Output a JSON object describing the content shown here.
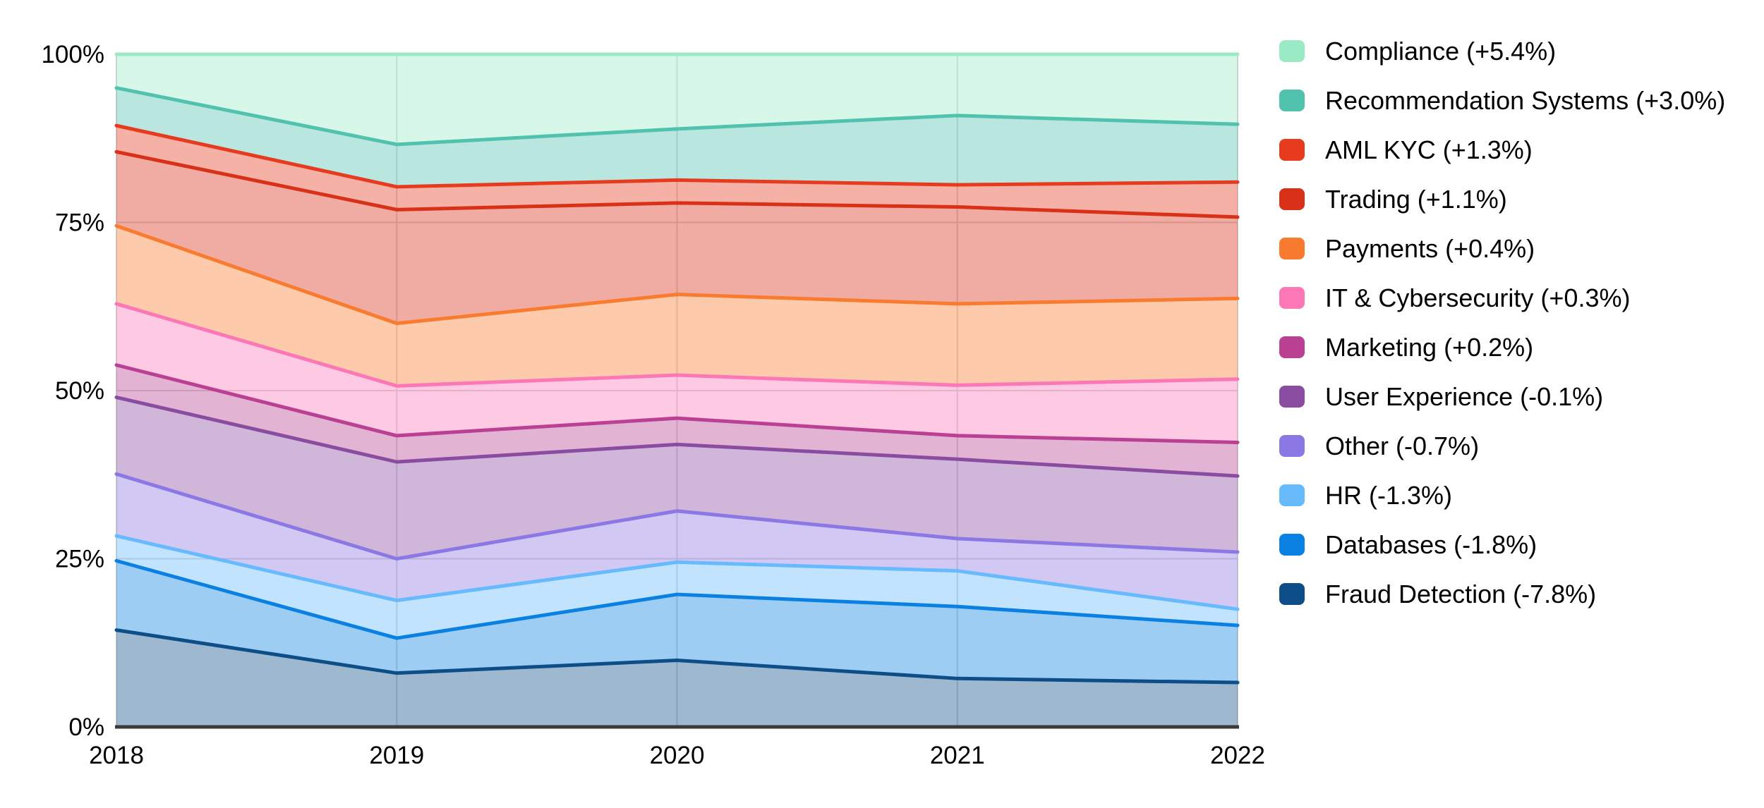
{
  "chart_data": {
    "type": "area",
    "stacked": true,
    "normalized": "percent",
    "title": "",
    "xlabel": "",
    "ylabel": "",
    "categories": [
      "2018",
      "2019",
      "2020",
      "2021",
      "2022"
    ],
    "series": [
      {
        "name": "Compliance",
        "legend_label": "Compliance (+5.4%)",
        "delta": "+5.4%",
        "color": "#9AEAC6",
        "values": [
          5.0,
          13.4,
          11.1,
          9.1,
          10.4
        ]
      },
      {
        "name": "Recommendation Systems",
        "legend_label": "Recommendation Systems (+3.0%)",
        "delta": "+3.0%",
        "color": "#50C2AE",
        "values": [
          5.6,
          6.3,
          7.6,
          10.3,
          8.6
        ]
      },
      {
        "name": "AML KYC",
        "legend_label": "AML KYC (+1.3%)",
        "delta": "+1.3%",
        "color": "#E63B1E",
        "values": [
          3.9,
          3.4,
          3.4,
          3.3,
          5.2
        ]
      },
      {
        "name": "Trading",
        "legend_label": "Trading (+1.1%)",
        "delta": "+1.1%",
        "color": "#D93018",
        "values": [
          11.0,
          16.9,
          13.6,
          14.4,
          12.1
        ]
      },
      {
        "name": "Payments",
        "legend_label": "Payments (+0.4%)",
        "delta": "+0.4%",
        "color": "#F97B30",
        "values": [
          11.6,
          9.3,
          12.0,
          12.1,
          12.0
        ]
      },
      {
        "name": "IT & Cybersecurity",
        "legend_label": "IT & Cybersecurity (+0.3%)",
        "delta": "+0.3%",
        "color": "#FC77B6",
        "values": [
          9.1,
          7.4,
          6.4,
          7.5,
          9.4
        ]
      },
      {
        "name": "Marketing",
        "legend_label": "Marketing (+0.2%)",
        "delta": "+0.2%",
        "color": "#BA4094",
        "values": [
          4.8,
          3.9,
          3.9,
          3.5,
          5.0
        ]
      },
      {
        "name": "User Experience",
        "legend_label": "User Experience (-0.1%)",
        "delta": "-0.1%",
        "color": "#8A4CA0",
        "values": [
          11.4,
          14.4,
          9.9,
          11.8,
          11.3
        ]
      },
      {
        "name": "Other",
        "legend_label": "Other (-0.7%)",
        "delta": "-0.7%",
        "color": "#8C78E4",
        "values": [
          9.2,
          6.2,
          7.6,
          4.8,
          8.5
        ]
      },
      {
        "name": "HR",
        "legend_label": "HR (-1.3%)",
        "delta": "-1.3%",
        "color": "#67BAFB",
        "values": [
          3.7,
          5.6,
          4.8,
          5.3,
          2.4
        ]
      },
      {
        "name": "Databases",
        "legend_label": "Databases (-1.8%)",
        "delta": "-1.8%",
        "color": "#0A81E2",
        "values": [
          10.3,
          5.2,
          9.8,
          10.7,
          8.5
        ]
      },
      {
        "name": "Fraud Detection",
        "legend_label": "Fraud Detection (-7.8%)",
        "delta": "-7.8%",
        "color": "#0D4E88",
        "values": [
          14.4,
          8.0,
          9.9,
          7.2,
          6.6
        ]
      }
    ],
    "yticks": [
      "0%",
      "25%",
      "50%",
      "75%",
      "100%"
    ],
    "ytick_values": [
      0,
      25,
      50,
      75,
      100
    ],
    "ylim": [
      0,
      100
    ],
    "grid": true,
    "legend_position": "right"
  },
  "style_colors": {
    "gridline": "#D8D8D8",
    "plot_border": "#CFCFCF",
    "axis_line": "#3A3A3A",
    "fill_opacity": 0.4
  }
}
